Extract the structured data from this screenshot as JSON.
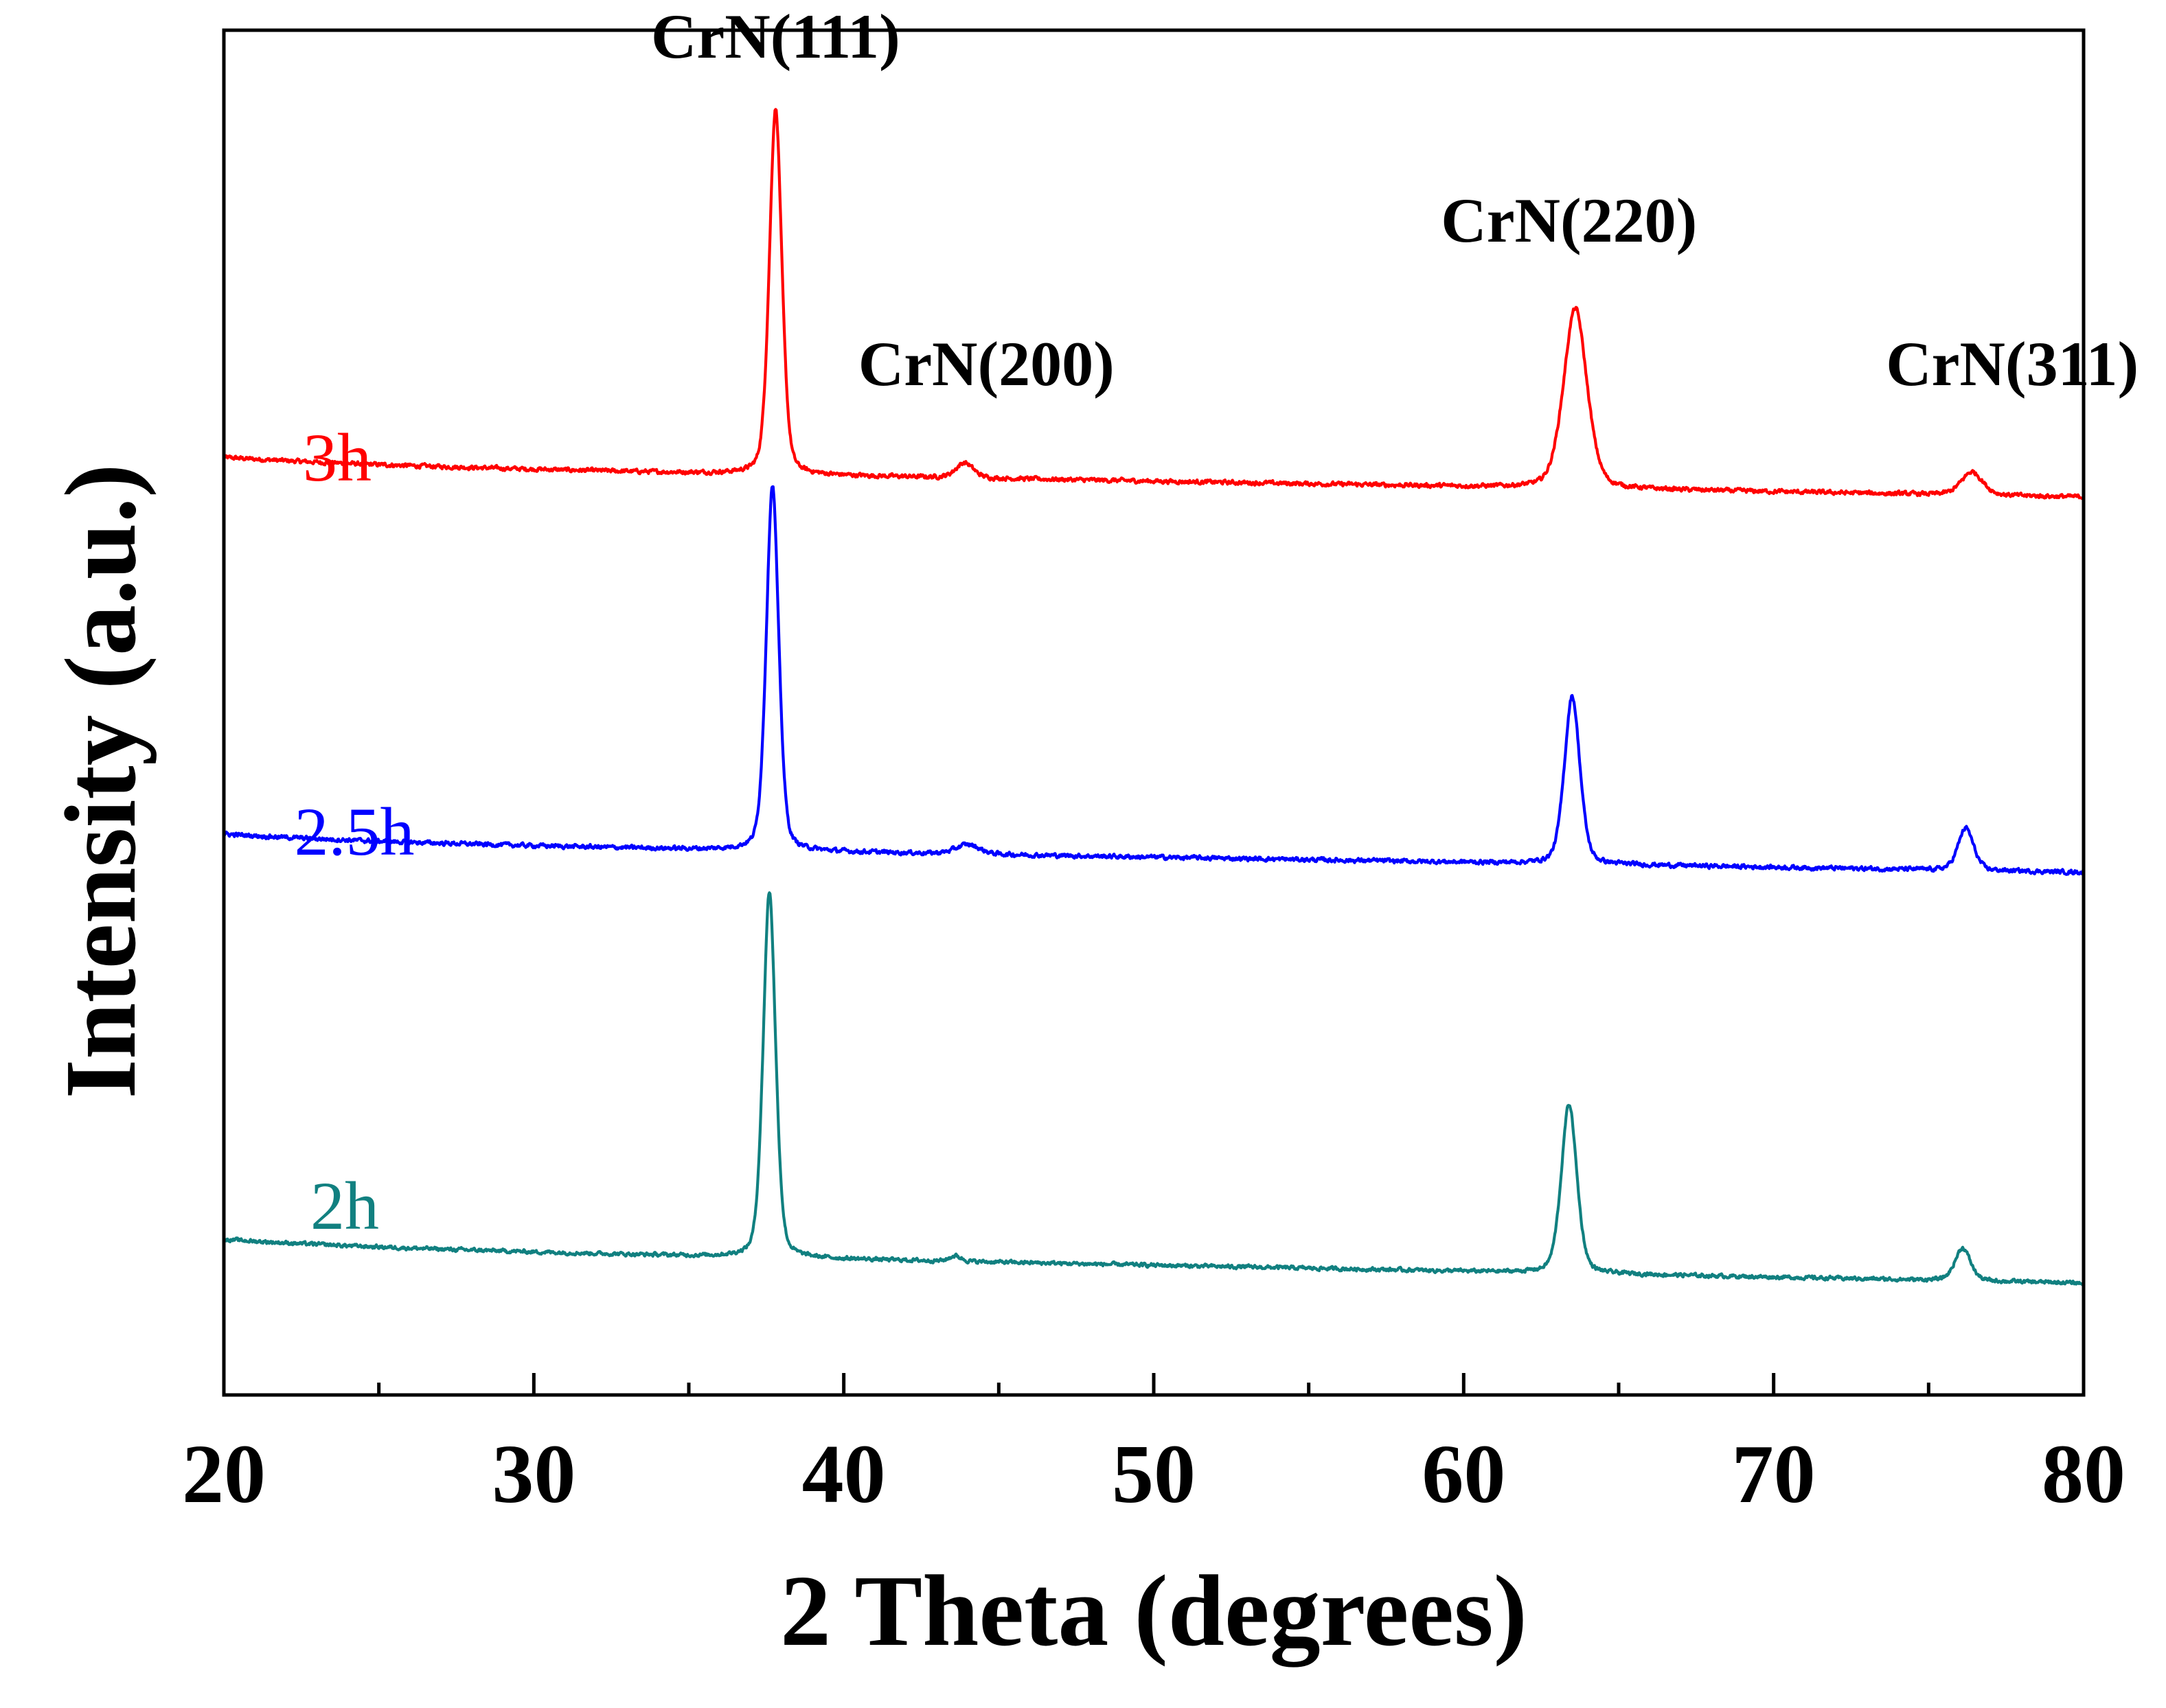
{
  "chart_data": {
    "type": "line",
    "title": "",
    "xlabel": "2 Theta (degrees)",
    "ylabel": "Intensity (a.u.)",
    "xlim": [
      20,
      80
    ],
    "ylim": [
      0,
      1
    ],
    "grid": false,
    "x_ticks": [
      20,
      30,
      40,
      50,
      60,
      70,
      80
    ],
    "x_minor_step": 5,
    "y_ticks_shown": false,
    "series": [
      {
        "name": "3h",
        "color": "#ff0000",
        "baseline_start": 0.681,
        "baseline_end": 0.658,
        "noise": 0.0025,
        "peaks": [
          {
            "x": 37.8,
            "height": 0.268,
            "width": 0.32
          },
          {
            "x": 43.9,
            "height": 0.011,
            "width": 0.45
          },
          {
            "x": 63.6,
            "height": 0.132,
            "width": 0.6
          },
          {
            "x": 76.4,
            "height": 0.017,
            "width": 0.55
          }
        ]
      },
      {
        "name": "2.5h",
        "color": "#0000ff",
        "baseline_start": 0.405,
        "baseline_end": 0.383,
        "noise": 0.0025,
        "peaks": [
          {
            "x": 37.7,
            "height": 0.268,
            "width": 0.32
          },
          {
            "x": 44.0,
            "height": 0.007,
            "width": 0.6
          },
          {
            "x": 63.5,
            "height": 0.123,
            "width": 0.4
          },
          {
            "x": 76.2,
            "height": 0.031,
            "width": 0.4
          }
        ]
      },
      {
        "name": "2h",
        "color": "#118080",
        "baseline_start": 0.108,
        "baseline_end": 0.082,
        "noise": 0.0022,
        "peaks": [
          {
            "x": 37.6,
            "height": 0.268,
            "width": 0.32
          },
          {
            "x": 43.6,
            "height": 0.004,
            "width": 0.3
          },
          {
            "x": 63.4,
            "height": 0.124,
            "width": 0.4
          },
          {
            "x": 76.1,
            "height": 0.024,
            "width": 0.4
          }
        ]
      }
    ],
    "annotations": [
      {
        "text": "CrN(111)",
        "x": 37.8,
        "y": 0.98
      },
      {
        "text": "CrN(200)",
        "x": 44.6,
        "y": 0.74
      },
      {
        "text": "CrN(220)",
        "x": 63.4,
        "y": 0.845
      },
      {
        "text": "CrN(311)",
        "x": 77.7,
        "y": 0.74
      }
    ]
  }
}
